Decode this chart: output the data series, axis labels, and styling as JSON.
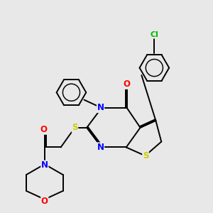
{
  "background_color": "#e8e8e8",
  "bond_color": "#000000",
  "atom_colors": {
    "N": "#0000ff",
    "O": "#ff0000",
    "S_yellow": "#cccc00",
    "Cl": "#00bb00",
    "C": "#000000"
  },
  "figsize": [
    3.0,
    3.0
  ],
  "dpi": 100
}
